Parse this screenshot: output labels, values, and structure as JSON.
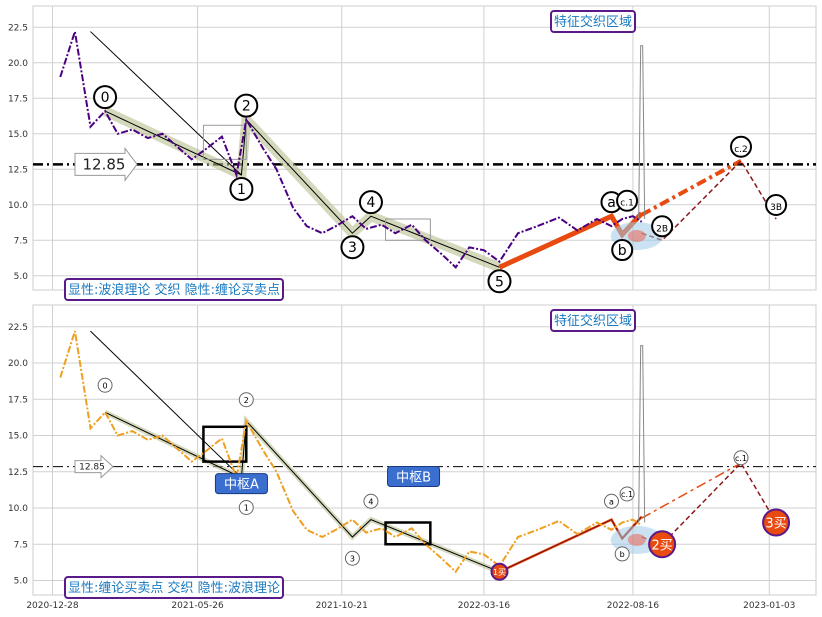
{
  "chart_data": [
    {
      "type": "line",
      "panel": "top",
      "title_tag": "特征交织区域",
      "caption": "显性:波浪理论 交织 隐性:缠论买卖点",
      "y_ticks": [
        "5.0",
        "7.5",
        "10.0",
        "12.5",
        "15.0",
        "17.5",
        "20.0",
        "22.5"
      ],
      "ylim": [
        4.0,
        24.0
      ],
      "reference_line": {
        "value": 12.85,
        "label": "12.85"
      },
      "price_series": {
        "name": "",
        "color": "#4b0082",
        "x": [
          "2021-01-05",
          "2021-01-20",
          "2021-02-05",
          "2021-02-20",
          "2021-03-05",
          "2021-03-20",
          "2021-04-05",
          "2021-04-20",
          "2021-05-05",
          "2021-05-20",
          "2021-06-05",
          "2021-06-20",
          "2021-07-05",
          "2021-07-15",
          "2021-08-01",
          "2021-08-15",
          "2021-09-01",
          "2021-09-15",
          "2021-10-01",
          "2021-10-15",
          "2021-11-01",
          "2021-11-15",
          "2021-12-01",
          "2021-12-15",
          "2022-01-01",
          "2022-01-15",
          "2022-02-01",
          "2022-02-15",
          "2022-03-01",
          "2022-03-16",
          "2022-04-01",
          "2022-04-20",
          "2022-05-10",
          "2022-06-01",
          "2022-06-20",
          "2022-07-10",
          "2022-07-25",
          "2022-08-05",
          "2022-08-16",
          "2022-08-25"
        ],
        "y": [
          19.0,
          22.2,
          15.5,
          16.6,
          15.0,
          15.3,
          14.7,
          15.0,
          14.1,
          13.2,
          14.0,
          14.8,
          12.1,
          16.0,
          14.0,
          12.5,
          9.8,
          8.5,
          8.0,
          8.5,
          9.2,
          8.3,
          8.6,
          8.0,
          8.6,
          7.5,
          6.5,
          5.6,
          7.0,
          6.8,
          6.0,
          8.0,
          8.5,
          9.1,
          8.2,
          9.0,
          8.5,
          9.0,
          9.2,
          8.8
        ]
      },
      "wave_labels": [
        {
          "label": "0",
          "x": "2021-02-20",
          "y": 16.6
        },
        {
          "label": "1",
          "x": "2021-07-10",
          "y": 12.1
        },
        {
          "label": "2",
          "x": "2021-07-15",
          "y": 16.0
        },
        {
          "label": "3",
          "x": "2021-11-01",
          "y": 8.0
        },
        {
          "label": "4",
          "x": "2021-11-20",
          "y": 9.2
        },
        {
          "label": "5",
          "x": "2022-04-01",
          "y": 5.6
        },
        {
          "label": "a",
          "x": "2022-07-25",
          "y": 9.2
        },
        {
          "label": "c.1",
          "x": "2022-08-10",
          "y": 9.3
        },
        {
          "label": "b",
          "x": "2022-08-05",
          "y": 7.8
        },
        {
          "label": "c.2",
          "x": "2022-12-05",
          "y": 13.1
        },
        {
          "label": "2B",
          "x": "2022-09-15",
          "y": 7.5
        },
        {
          "label": "3B",
          "x": "2023-01-10",
          "y": 9.0
        }
      ],
      "spike": {
        "x": "2022-08-25",
        "y": 21.0
      }
    },
    {
      "type": "line",
      "panel": "bottom",
      "title_tag": "特征交织区域",
      "caption": "显性:缠论买卖点 交织 隐性:波浪理论",
      "y_ticks": [
        "5.0",
        "7.5",
        "10.0",
        "12.5",
        "15.0",
        "17.5",
        "20.0",
        "22.5"
      ],
      "ylim": [
        4.0,
        24.0
      ],
      "reference_line": {
        "value": 12.85,
        "label": "12.85"
      },
      "x_ticks": [
        "2020-12-28",
        "2021-05-26",
        "2021-10-21",
        "2022-03-16",
        "2022-08-16",
        "2023-01-03"
      ],
      "price_series": {
        "name": "",
        "color": "#f0a020"
      },
      "zhongshu": [
        {
          "label": "中枢A",
          "x0": "2021-06-01",
          "x1": "2021-07-15",
          "y0": 13.2,
          "y1": 15.6
        },
        {
          "label": "中枢B",
          "x0": "2021-12-05",
          "x1": "2022-01-20",
          "y0": 7.5,
          "y1": 9.0
        }
      ],
      "buy_sell_points": [
        {
          "label": "1买",
          "x": "2022-04-01",
          "y": 5.6
        },
        {
          "label": "2买",
          "x": "2022-09-15",
          "y": 7.5
        },
        {
          "label": "3买",
          "x": "2023-01-10",
          "y": 9.0
        }
      ],
      "wave_labels": [
        {
          "label": "0",
          "x": "2021-02-20",
          "y": 17.5
        },
        {
          "label": "1",
          "x": "2021-07-15",
          "y": 11.0
        },
        {
          "label": "2",
          "x": "2021-07-15",
          "y": 16.5
        },
        {
          "label": "3",
          "x": "2021-11-01",
          "y": 7.5
        },
        {
          "label": "4",
          "x": "2021-11-20",
          "y": 9.5
        },
        {
          "label": "a",
          "x": "2022-07-25",
          "y": 9.5
        },
        {
          "label": "c.1",
          "x": "2022-08-10",
          "y": 10.0
        },
        {
          "label": "b",
          "x": "2022-08-05",
          "y": 7.8
        },
        {
          "label": "c.1",
          "x": "2022-12-05",
          "y": 12.5
        }
      ]
    }
  ]
}
